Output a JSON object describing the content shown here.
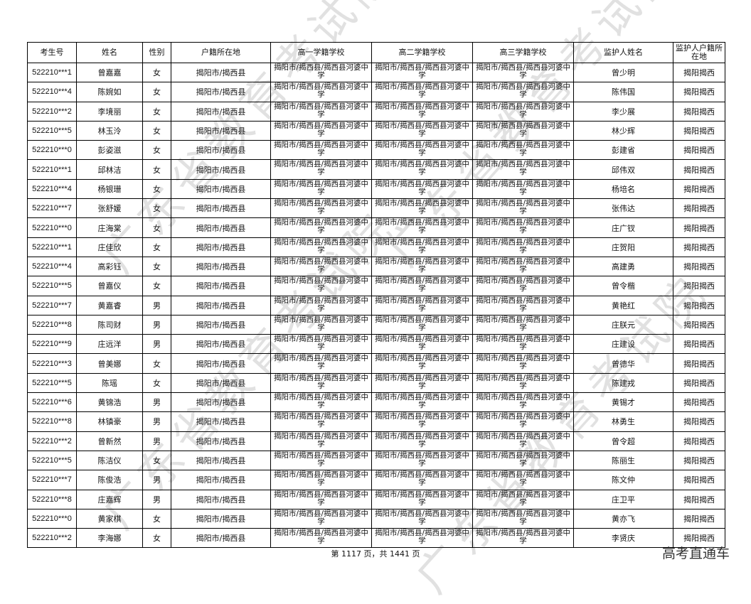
{
  "headers": [
    "考生号",
    "姓名",
    "性别",
    "户籍所在地",
    "高一学籍学校",
    "高二学籍学校",
    "高三学籍学校",
    "监护人姓名",
    "监护人户籍所在地"
  ],
  "school": "揭阳市/揭西县/揭西县河婆中学",
  "household": "揭阳市/揭西县",
  "guardian_household": "揭阳揭西",
  "rows": [
    [
      "522210***1",
      "曾嘉嘉",
      "女",
      "曾少明"
    ],
    [
      "522210***4",
      "陈婉如",
      "女",
      "陈伟国"
    ],
    [
      "522210***2",
      "李境丽",
      "女",
      "李少展"
    ],
    [
      "522210***5",
      "林玉泠",
      "女",
      "林少辉"
    ],
    [
      "522210***0",
      "彭姿滋",
      "女",
      "彭建省"
    ],
    [
      "522210***1",
      "邱林洁",
      "女",
      "邱伟双"
    ],
    [
      "522210***4",
      "杨银珊",
      "女",
      "杨培名"
    ],
    [
      "522210***7",
      "张舒媛",
      "女",
      "张伟达"
    ],
    [
      "522210***0",
      "庄海棠",
      "女",
      "庄广钗"
    ],
    [
      "522210***1",
      "庄佳欣",
      "女",
      "庄贺阳"
    ],
    [
      "522210***4",
      "高彩钰",
      "女",
      "高建勇"
    ],
    [
      "522210***5",
      "曾嘉仪",
      "女",
      "曾令楷"
    ],
    [
      "522210***7",
      "黄嘉睿",
      "男",
      "黄艳红"
    ],
    [
      "522210***8",
      "陈司财",
      "男",
      "庄朕元"
    ],
    [
      "522210***9",
      "庄远洋",
      "男",
      "庄建设"
    ],
    [
      "522210***3",
      "曾美娜",
      "女",
      "曾德华"
    ],
    [
      "522210***5",
      "陈瑶",
      "女",
      "陈建戎"
    ],
    [
      "522210***6",
      "黄锦浩",
      "男",
      "黄锡才"
    ],
    [
      "522210***8",
      "林镇豪",
      "男",
      "林勇生"
    ],
    [
      "522210***2",
      "曾新然",
      "男",
      "曾令超"
    ],
    [
      "522210***5",
      "陈洁仪",
      "女",
      "陈丽生"
    ],
    [
      "522210***7",
      "陈俊浩",
      "男",
      "陈文仲"
    ],
    [
      "522210***8",
      "庄嘉辉",
      "男",
      "庄卫平"
    ],
    [
      "522210***0",
      "黄家棋",
      "女",
      "黄亦飞"
    ],
    [
      "522210***2",
      "李海娜",
      "女",
      "李贤庆"
    ]
  ],
  "footer": "第 1117 页，共 1441 页",
  "watermark": "广东省教育考试院",
  "brand": "高考直通车"
}
